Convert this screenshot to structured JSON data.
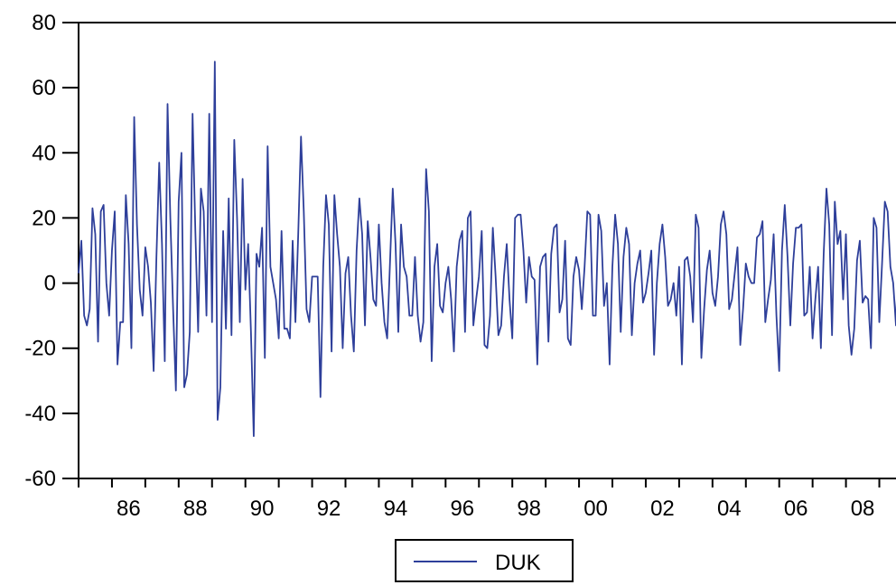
{
  "chart_data": {
    "type": "line",
    "title": "",
    "xlabel": "",
    "ylabel": "",
    "x_start": 1985.0,
    "x_step": 0.08333,
    "xlim": [
      1985.0,
      2009.5
    ],
    "ylim": [
      -60,
      80
    ],
    "yticks": [
      "80",
      "60",
      "40",
      "20",
      "0",
      "-20",
      "-40",
      "-60"
    ],
    "xticks": [
      "86",
      "88",
      "90",
      "92",
      "94",
      "96",
      "98",
      "00",
      "02",
      "04",
      "06",
      "08"
    ],
    "grid": false,
    "legend_position": "bottom-center",
    "series": [
      {
        "name": "DUK",
        "color": "#2e3f9a",
        "values": [
          3,
          13,
          -10,
          -13,
          -8,
          23,
          15,
          -18,
          22,
          24,
          0,
          -10,
          10,
          22,
          -25,
          -12,
          -12,
          27,
          12,
          -20,
          51,
          18,
          -2,
          -10,
          11,
          5,
          -6,
          -27,
          8,
          37,
          12,
          -24,
          55,
          20,
          -8,
          -33,
          25,
          40,
          -32,
          -28,
          -15,
          52,
          16,
          -15,
          29,
          22,
          -10,
          52,
          -12,
          68,
          -42,
          -32,
          16,
          -14,
          26,
          -16,
          44,
          20,
          -12,
          32,
          -2,
          12,
          -15,
          -47,
          9,
          5,
          17,
          -23,
          42,
          5,
          0,
          -5,
          -17,
          16,
          -14,
          -14,
          -17,
          13,
          -12,
          15,
          45,
          22,
          -8,
          -12,
          2,
          2,
          2,
          -35,
          5,
          27,
          18,
          -21,
          27,
          15,
          5,
          -20,
          3,
          8,
          -10,
          -21,
          10,
          26,
          15,
          -13,
          19,
          8,
          -5,
          -7,
          18,
          0,
          -12,
          -17,
          6,
          29,
          12,
          -15,
          18,
          5,
          2,
          -10,
          -10,
          8,
          -10,
          -18,
          -12,
          35,
          22,
          -24,
          5,
          12,
          -7,
          -9,
          0,
          5,
          -5,
          -21,
          5,
          13,
          16,
          -15,
          20,
          22,
          -13,
          -5,
          2,
          16,
          -19,
          -20,
          -10,
          17,
          2,
          -16,
          -13,
          2,
          12,
          -5,
          -17,
          20,
          21,
          21,
          10,
          -6,
          8,
          2,
          1,
          -25,
          5,
          8,
          9,
          -18,
          9,
          17,
          18,
          -9,
          -5,
          13,
          -17,
          -19,
          2,
          8,
          4,
          -8,
          5,
          22,
          21,
          -10,
          -10,
          21,
          16,
          -7,
          0,
          -25,
          5,
          21,
          12,
          -15,
          8,
          17,
          12,
          -16,
          0,
          6,
          10,
          -6,
          -3,
          3,
          10,
          -22,
          0,
          12,
          18,
          8,
          -7,
          -5,
          0,
          -10,
          5,
          -25,
          7,
          8,
          2,
          -12,
          21,
          17,
          -23,
          -8,
          4,
          10,
          -3,
          -7,
          2,
          18,
          22,
          15,
          -8,
          -5,
          3,
          11,
          -19,
          -8,
          6,
          2,
          0,
          0,
          14,
          15,
          19,
          -12,
          -5,
          1,
          15,
          -10,
          -27,
          10,
          24,
          8,
          -13,
          6,
          17,
          17,
          18,
          -10,
          -9,
          5,
          -17,
          -5,
          5,
          -20,
          9,
          29,
          18,
          -16,
          25,
          12,
          16,
          -5,
          15,
          -13,
          -22,
          -14,
          7,
          13,
          -6,
          -4,
          -5,
          -20,
          20,
          17,
          -12,
          6,
          25,
          22,
          5,
          0,
          -13,
          14,
          21,
          5,
          -18,
          22,
          12,
          21,
          -21,
          -5,
          3,
          0,
          15,
          -25,
          3,
          16,
          22,
          15,
          -18,
          5,
          14,
          -17,
          -19,
          18,
          15,
          24,
          -10,
          -14,
          2,
          15,
          2,
          -10,
          -28,
          12,
          18,
          22,
          -14,
          6,
          23,
          24,
          10,
          -17,
          3,
          0,
          3,
          -26,
          5,
          13,
          21,
          10,
          -18,
          -12,
          15,
          20,
          12,
          -12,
          24,
          15,
          -15,
          12,
          6,
          -16,
          -14,
          15,
          5,
          -28,
          5,
          19,
          12,
          -13,
          24,
          24,
          17,
          -2
        ]
      }
    ]
  }
}
